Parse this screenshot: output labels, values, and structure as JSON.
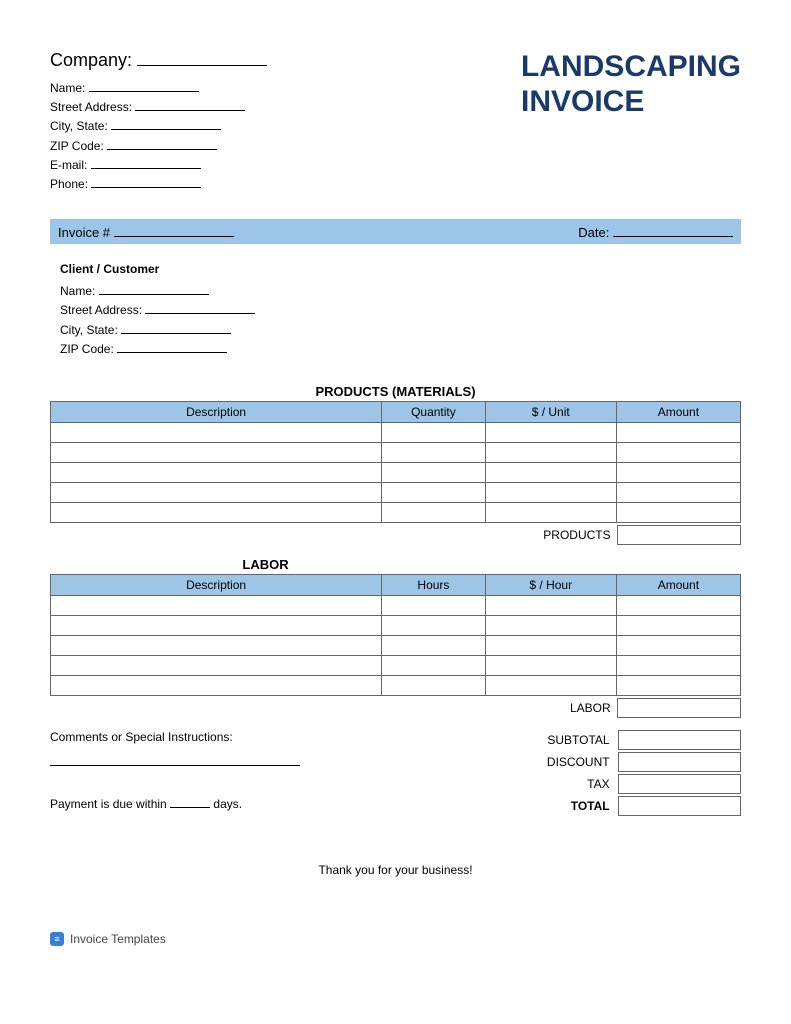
{
  "colors": {
    "header_bg": "#9cc5e8",
    "title_color": "#1a3a6e",
    "border": "#666666",
    "background": "#ffffff",
    "text": "#000000"
  },
  "company": {
    "heading": "Company:",
    "fields": {
      "name": "Name:",
      "street": "Street Address:",
      "city_state": "City, State:",
      "zip": "ZIP Code:",
      "email": "E-mail:",
      "phone": "Phone:"
    }
  },
  "title_line1": "LANDSCAPING",
  "title_line2": "INVOICE",
  "info_bar": {
    "invoice_label": "Invoice #",
    "date_label": "Date:"
  },
  "client": {
    "heading": "Client / Customer",
    "fields": {
      "name": "Name:",
      "street": "Street Address:",
      "city_state": "City, State:",
      "zip": "ZIP Code:"
    }
  },
  "products": {
    "title": "PRODUCTS (MATERIALS)",
    "columns": [
      "Description",
      "Quantity",
      "$ / Unit",
      "Amount"
    ],
    "row_count": 5,
    "subtotal_label": "PRODUCTS"
  },
  "labor": {
    "title": "LABOR",
    "columns": [
      "Description",
      "Hours",
      "$ / Hour",
      "Amount"
    ],
    "row_count": 5,
    "subtotal_label": "LABOR"
  },
  "comments_label": "Comments or Special Instructions:",
  "totals": {
    "subtotal": "SUBTOTAL",
    "discount": "DISCOUNT",
    "tax": "TAX",
    "total": "TOTAL"
  },
  "payment_prefix": "Payment is due within",
  "payment_suffix": "days.",
  "thanks": "Thank you for your business!",
  "footer_brand": "Invoice Templates"
}
